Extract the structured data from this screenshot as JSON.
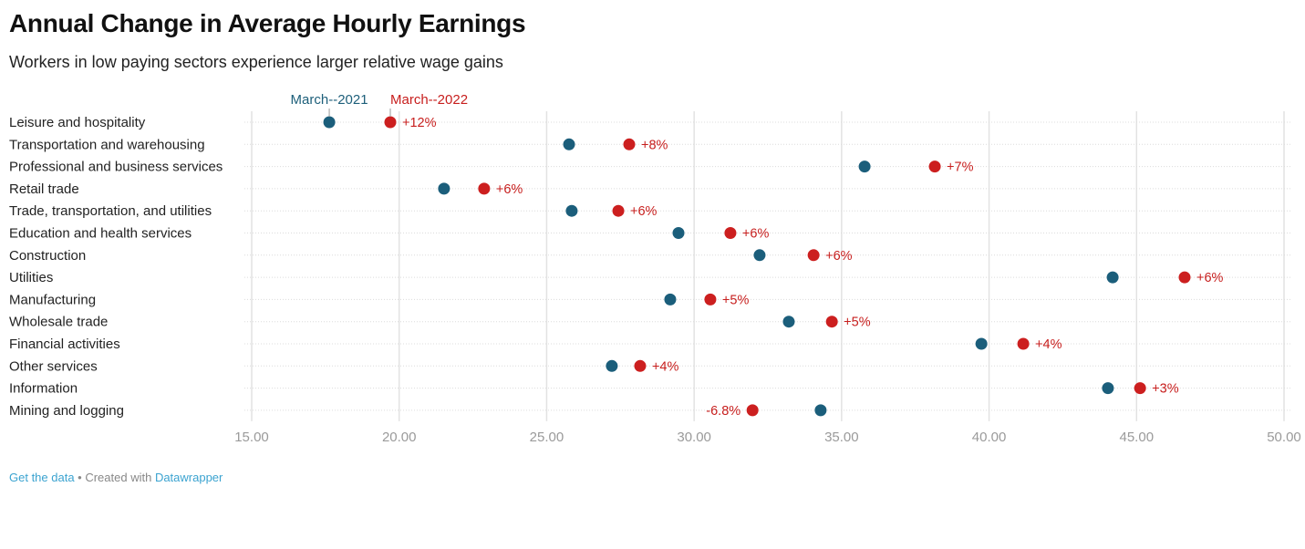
{
  "title": "Annual Change in Average Hourly Earnings",
  "subtitle": "Workers in low paying sectors experience larger relative wage gains",
  "footer": {
    "get_data": "Get the data",
    "separator": " • Created with ",
    "datawrapper": "Datawrapper"
  },
  "colors": {
    "series_2021": "#1b5e7b",
    "series_2022": "#cc1f1f",
    "grid": "#e2e2e2",
    "tick_text": "#9a9a9a"
  },
  "chart_data": {
    "type": "dot-range",
    "title": "Annual Change in Average Hourly Earnings",
    "subtitle": "Workers in low paying sectors experience larger relative wage gains",
    "xlabel": "",
    "ylabel": "",
    "xlim": [
      15,
      50
    ],
    "x_ticks": [
      "15.00",
      "20.00",
      "25.00",
      "30.00",
      "35.00",
      "40.00",
      "45.00",
      "50.00"
    ],
    "x_tick_values": [
      15,
      20,
      25,
      30,
      35,
      40,
      45,
      50
    ],
    "grid": true,
    "legend": {
      "placement": "top",
      "entries": [
        "March--2021",
        "March--2022"
      ]
    },
    "categories": [
      "Leisure and hospitality",
      "Transportation and warehousing",
      "Professional and business services",
      "Retail trade",
      "Trade, transportation, and utilities",
      "Education and health services",
      "Construction",
      "Utilities",
      "Manufacturing",
      "Wholesale trade",
      "Financial activities",
      "Other services",
      "Information",
      "Mining and logging"
    ],
    "series": [
      {
        "name": "March--2021",
        "values": [
          17.63,
          25.76,
          35.78,
          21.52,
          25.85,
          29.47,
          32.22,
          44.19,
          29.19,
          33.21,
          39.74,
          27.21,
          44.03,
          34.29
        ]
      },
      {
        "name": "March--2022",
        "values": [
          19.7,
          27.8,
          38.16,
          22.88,
          27.43,
          31.23,
          34.05,
          46.63,
          30.55,
          34.67,
          41.16,
          28.17,
          45.12,
          31.98
        ]
      }
    ],
    "change_labels": [
      "+12%",
      "+8%",
      "+7%",
      "+6%",
      "+6%",
      "+6%",
      "+6%",
      "+6%",
      "+5%",
      "+5%",
      "+4%",
      "+4%",
      "+3%",
      "-6.8%"
    ]
  }
}
